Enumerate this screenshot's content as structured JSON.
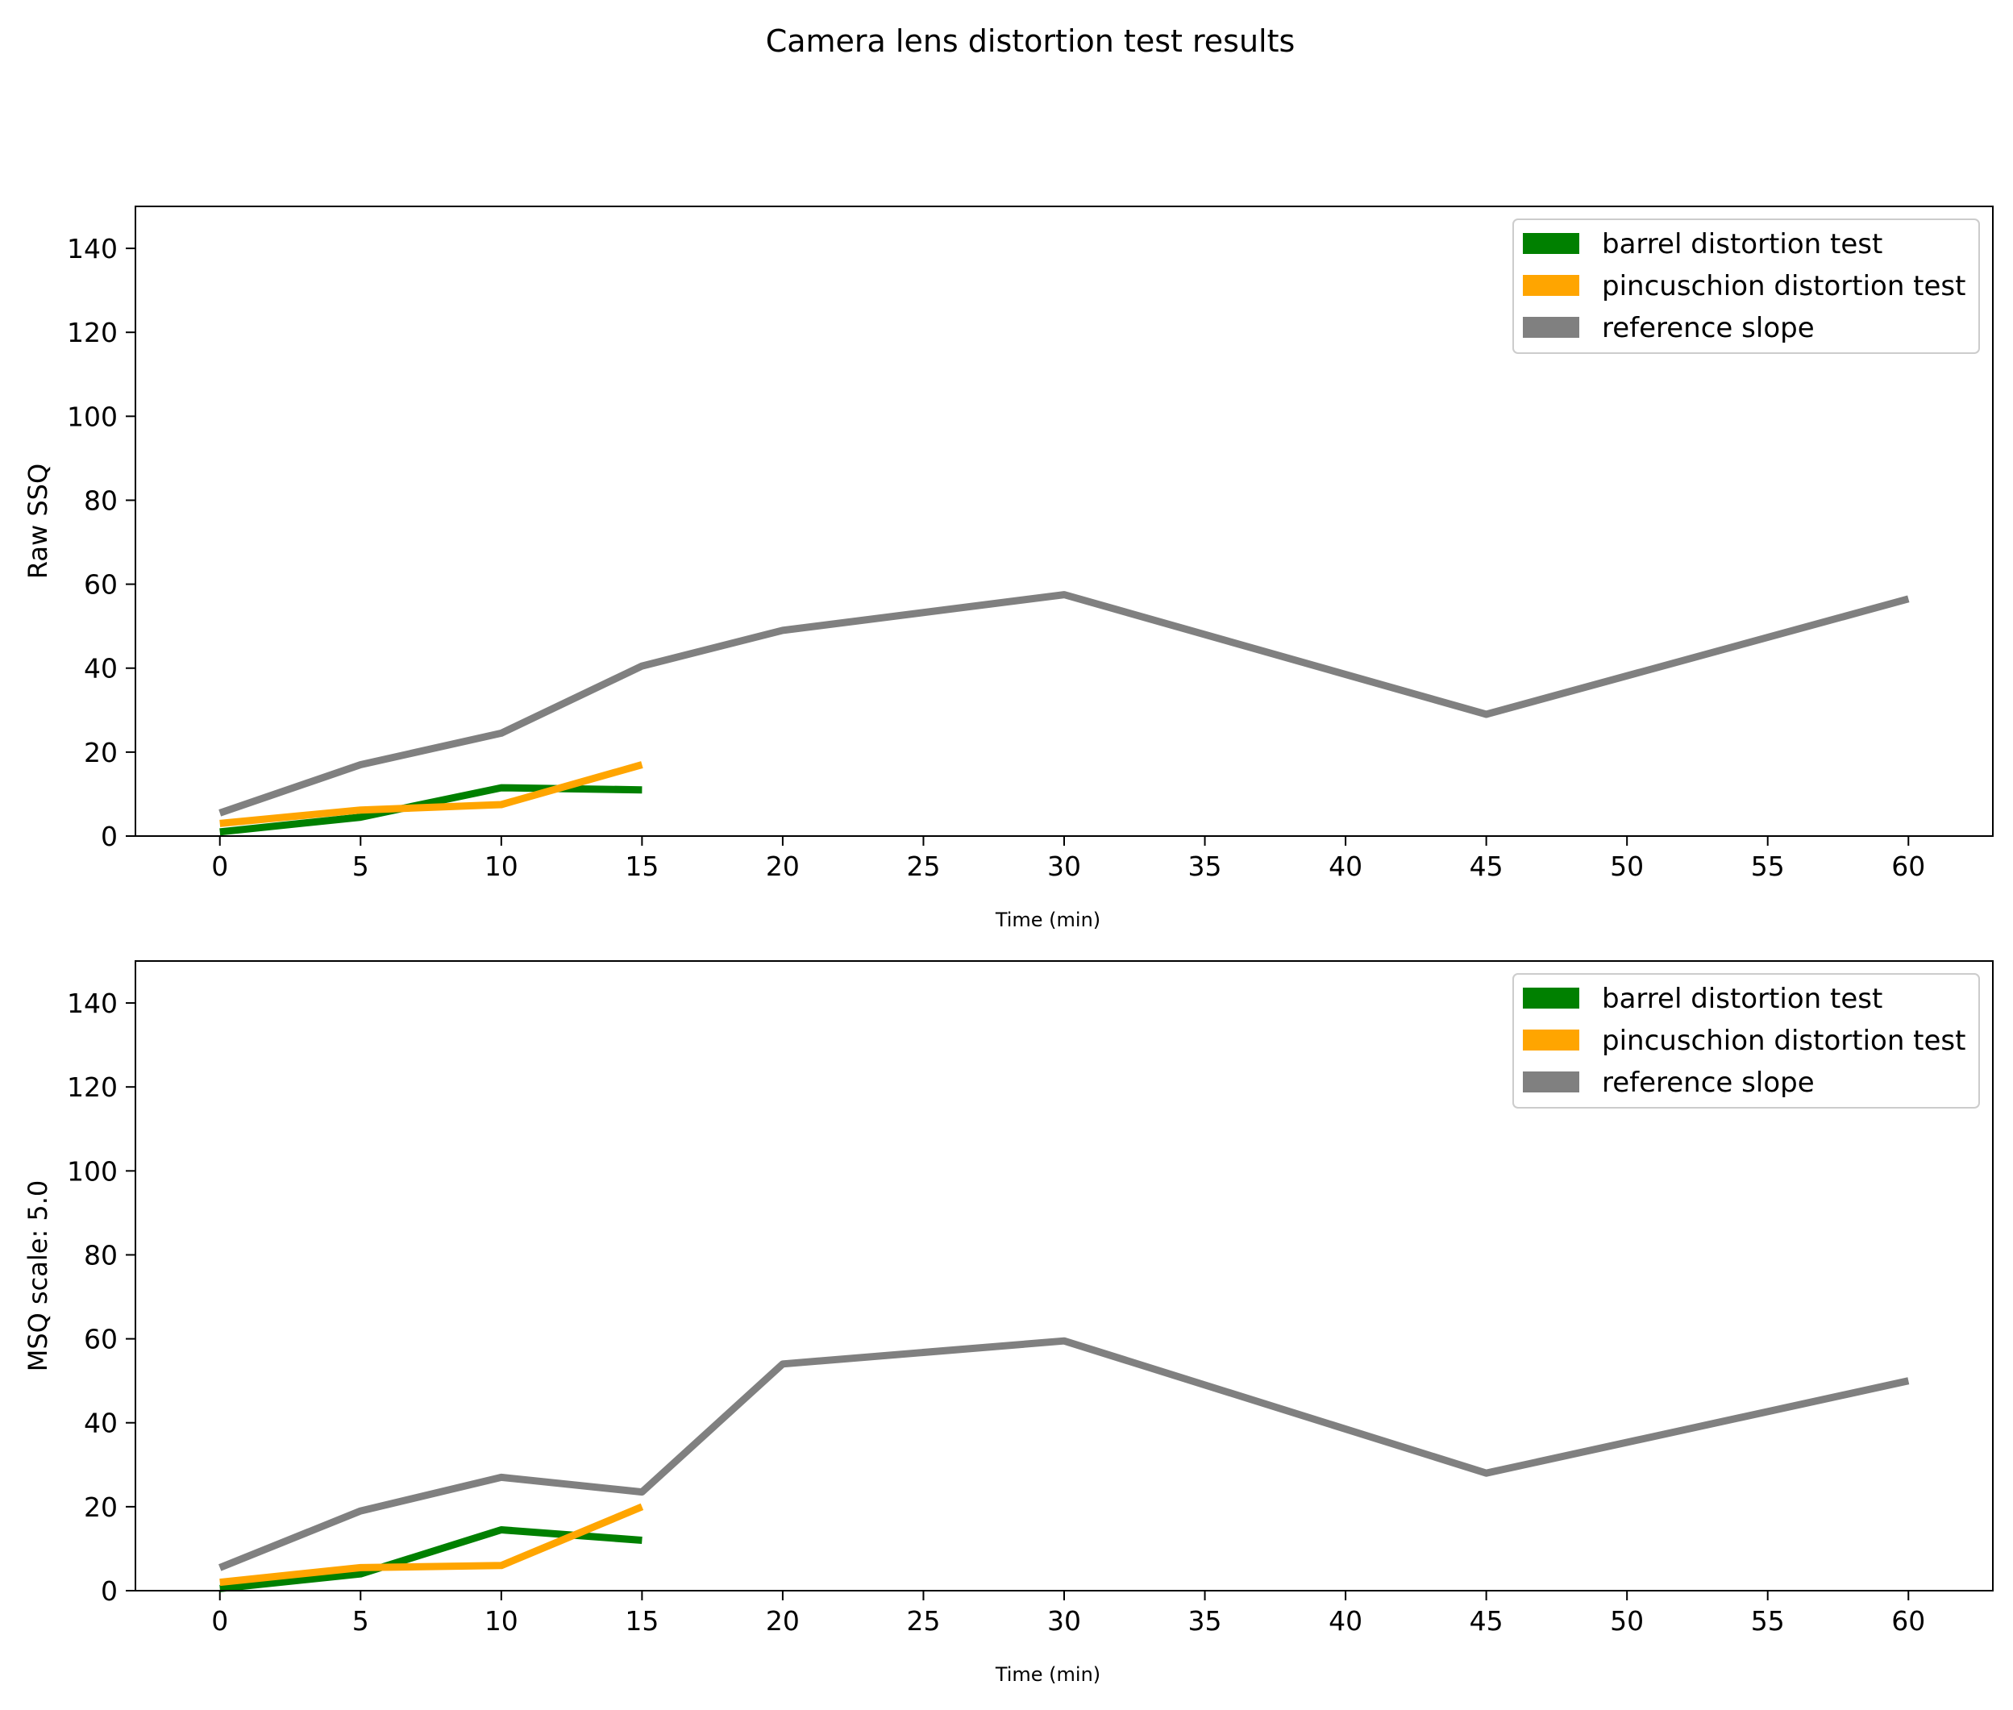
{
  "figure_title": "Camera lens distortion test results",
  "colors": {
    "barrel": "#008000",
    "pincushion": "#FFA500",
    "reference": "#808080"
  },
  "chart_data": [
    {
      "type": "line",
      "title": "",
      "xlabel": "Time (min)",
      "ylabel": "Raw SSQ",
      "xlim": [
        -3,
        63
      ],
      "ylim": [
        0,
        150
      ],
      "xticks": [
        0,
        5,
        10,
        15,
        20,
        25,
        30,
        35,
        40,
        45,
        50,
        55,
        60
      ],
      "yticks": [
        0,
        20,
        40,
        60,
        80,
        100,
        120,
        140
      ],
      "legend_position": "top-right",
      "series": [
        {
          "name": "barrel distortion test",
          "color_key": "barrel",
          "x": [
            0,
            5,
            10,
            15
          ],
          "y": [
            1,
            4.5,
            11.5,
            11
          ]
        },
        {
          "name": "pincuschion distortion test",
          "color_key": "pincushion",
          "x": [
            0,
            5,
            10,
            15
          ],
          "y": [
            3,
            6.2,
            7.5,
            17
          ]
        },
        {
          "name": "reference slope",
          "color_key": "reference",
          "x": [
            0,
            5,
            10,
            15,
            20,
            30,
            45,
            60
          ],
          "y": [
            5.5,
            17,
            24.5,
            40.5,
            49,
            57.5,
            29,
            56.5
          ]
        }
      ]
    },
    {
      "type": "line",
      "title": "",
      "xlabel": "Time (min)",
      "ylabel": "MSQ scale: 5.0",
      "xlim": [
        -3,
        63
      ],
      "ylim": [
        0,
        150
      ],
      "xticks": [
        0,
        5,
        10,
        15,
        20,
        25,
        30,
        35,
        40,
        45,
        50,
        55,
        60
      ],
      "yticks": [
        0,
        20,
        40,
        60,
        80,
        100,
        120,
        140
      ],
      "legend_position": "top-right",
      "series": [
        {
          "name": "barrel distortion test",
          "color_key": "barrel",
          "x": [
            0,
            5,
            10,
            15
          ],
          "y": [
            0.5,
            4,
            14.5,
            12
          ]
        },
        {
          "name": "pincuschion distortion test",
          "color_key": "pincushion",
          "x": [
            0,
            5,
            10,
            15
          ],
          "y": [
            2,
            5.5,
            6,
            20
          ]
        },
        {
          "name": "reference slope",
          "color_key": "reference",
          "x": [
            0,
            5,
            10,
            15,
            20,
            30,
            45,
            60
          ],
          "y": [
            5.5,
            19,
            27,
            23.5,
            54,
            59.5,
            28,
            50
          ]
        }
      ]
    }
  ]
}
